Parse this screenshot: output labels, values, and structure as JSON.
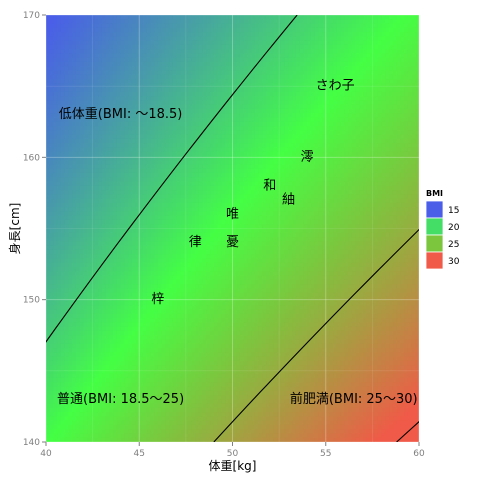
{
  "chart_data": {
    "type": "heatmap",
    "xlabel": "体重[kg]",
    "ylabel": "身長[cm]",
    "xlim": [
      40,
      60
    ],
    "ylim": [
      140,
      170
    ],
    "x_ticks": [
      40,
      45,
      50,
      55,
      60
    ],
    "y_ticks": [
      140,
      150,
      160,
      170
    ],
    "fill_variable": "BMI",
    "legend": {
      "title": "BMI",
      "position": "right",
      "entries": [
        {
          "label": "15",
          "value": 15,
          "color": "#4a5ee8"
        },
        {
          "label": "20",
          "value": 20,
          "color": "#44dd66"
        },
        {
          "label": "25",
          "value": 25,
          "color": "#7cc63e"
        },
        {
          "label": "30",
          "value": 30,
          "color": "#f05a48"
        }
      ]
    },
    "color_scale": [
      {
        "value": 14.0,
        "color": "#4a5ee8"
      },
      {
        "value": 20.5,
        "color": "#44ff44"
      },
      {
        "value": 23.5,
        "color": "#7cc63e"
      },
      {
        "value": 29.5,
        "color": "#f05a48"
      }
    ],
    "contours": [
      18.5,
      25,
      30
    ],
    "region_labels": [
      {
        "text": "低体重(BMI: 〜18.5)",
        "x": 44,
        "y": 163
      },
      {
        "text": "普通(BMI: 18.5〜25)",
        "x": 44,
        "y": 143
      },
      {
        "text": "前肥満(BMI: 25〜30)",
        "x": 56.5,
        "y": 143
      }
    ],
    "points": [
      {
        "name": "さわ子",
        "x": 55.5,
        "y": 165
      },
      {
        "name": "澪",
        "x": 54,
        "y": 160
      },
      {
        "name": "和",
        "x": 52,
        "y": 158
      },
      {
        "name": "紬",
        "x": 53,
        "y": 157
      },
      {
        "name": "唯",
        "x": 50,
        "y": 156
      },
      {
        "name": "律",
        "x": 48,
        "y": 154
      },
      {
        "name": "憂",
        "x": 50,
        "y": 154
      },
      {
        "name": "梓",
        "x": 46,
        "y": 150
      }
    ]
  }
}
